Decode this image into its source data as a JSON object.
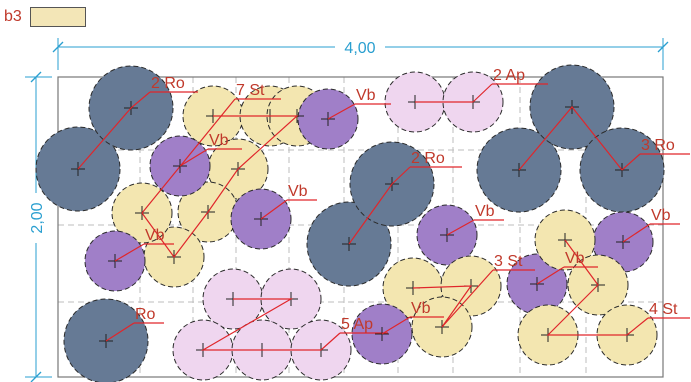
{
  "legend": {
    "label": "b3",
    "color": "#f3e6b7"
  },
  "dimensions": {
    "width": "4,00",
    "height": "2,00"
  },
  "colors": {
    "Ro": "#667a95",
    "St": "#f3e6b0",
    "Ap": "#efd6ef",
    "Vb": "#a07fc8",
    "label": "#c0392b",
    "leader": "#e0262b",
    "dimension": "#2a9fd0",
    "grid": "#bdbdbd",
    "frame": "#777777"
  },
  "plant_types": {
    "Ro": {
      "fill": "#667a95"
    },
    "St": {
      "fill": "#f3e6b0"
    },
    "Ap": {
      "fill": "#efd6ef"
    },
    "Vb": {
      "fill": "#a07fc8"
    }
  },
  "groups": [
    {
      "id": "g1",
      "type": "Ro",
      "label": "2 Ro"
    },
    {
      "id": "g2",
      "type": "St",
      "label": "7 St"
    },
    {
      "id": "g3",
      "type": "Vb",
      "label": "Vb"
    },
    {
      "id": "g4",
      "type": "Ap",
      "label": "2 Ap"
    },
    {
      "id": "g5",
      "type": "Ro",
      "label": "3 Ro"
    },
    {
      "id": "g6",
      "type": "Vb",
      "label": "Vb"
    },
    {
      "id": "g7",
      "type": "Ro",
      "label": "2 Ro"
    },
    {
      "id": "g8",
      "type": "Vb",
      "label": "Vb"
    },
    {
      "id": "g9",
      "type": "Vb",
      "label": "Vb"
    },
    {
      "id": "g10",
      "type": "Vb",
      "label": "Vb"
    },
    {
      "id": "g11",
      "type": "Vb",
      "label": "Vb"
    },
    {
      "id": "g12",
      "type": "St",
      "label": "3 St"
    },
    {
      "id": "g13",
      "type": "Vb",
      "label": "Vb"
    },
    {
      "id": "g14",
      "type": "St",
      "label": "4 St"
    },
    {
      "id": "g15",
      "type": "Ro",
      "label": "Ro"
    },
    {
      "id": "g16",
      "type": "Ap",
      "label": "5 Ap"
    },
    {
      "id": "g17",
      "type": "Vb",
      "label": "Vb"
    },
    {
      "id": "g18",
      "type": "Vb",
      "label": "Vb"
    }
  ]
}
